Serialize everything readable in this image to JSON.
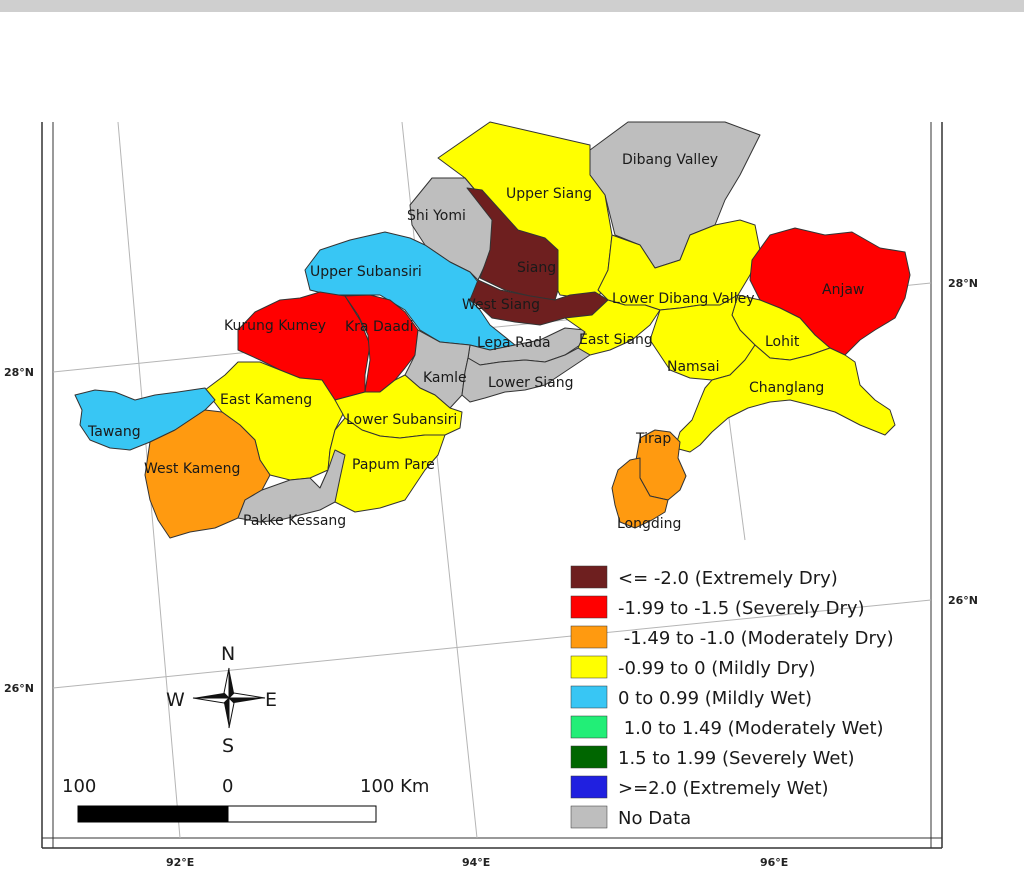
{
  "map": {
    "districts": [
      {
        "name": "Dibang Valley",
        "color": "#bebebe"
      },
      {
        "name": "Upper Siang",
        "color": "#ffff00"
      },
      {
        "name": "Shi Yomi",
        "color": "#bebebe"
      },
      {
        "name": "Siang",
        "color": "#6e1f1f"
      },
      {
        "name": "Upper Subansiri",
        "color": "#38c6f4"
      },
      {
        "name": "West Siang",
        "color": "#6e1f1f"
      },
      {
        "name": "Lower Dibang Valley",
        "color": "#ffff00"
      },
      {
        "name": "Anjaw",
        "color": "#ff0000"
      },
      {
        "name": "Kurung Kumey",
        "color": "#ff0000"
      },
      {
        "name": "Kra Daadi",
        "color": "#ff0000"
      },
      {
        "name": "Lepa Rada",
        "color": "#bebebe"
      },
      {
        "name": "East Siang",
        "color": "#ffff00"
      },
      {
        "name": "Lohit",
        "color": "#ffff00"
      },
      {
        "name": "Namsai",
        "color": "#ffff00"
      },
      {
        "name": "Kamle",
        "color": "#bebebe"
      },
      {
        "name": "Lower Siang",
        "color": "#bebebe"
      },
      {
        "name": "Changlang",
        "color": "#ffff00"
      },
      {
        "name": "East Kameng",
        "color": "#ffff00"
      },
      {
        "name": "Tawang",
        "color": "#38c6f4"
      },
      {
        "name": "Lower Subansiri",
        "color": "#ffff00"
      },
      {
        "name": "Tirap",
        "color": "#ff9a10"
      },
      {
        "name": "West Kameng",
        "color": "#ff9a10"
      },
      {
        "name": "Papum Pare",
        "color": "#ffff00"
      },
      {
        "name": "Longding",
        "color": "#ff9a10"
      },
      {
        "name": "Pakke Kessang",
        "color": "#bebebe"
      }
    ],
    "latitude_labels_left": [
      "28°N",
      "26°N"
    ],
    "latitude_labels_right": [
      "28°N",
      "26°N"
    ],
    "longitude_labels": [
      "92°E",
      "94°E",
      "96°E"
    ]
  },
  "legend": {
    "items": [
      {
        "label": "<= -2.0 (Extremely Dry)",
        "color": "#6e1f1f"
      },
      {
        "label": "-1.99 to -1.5 (Severely Dry)",
        "color": "#ff0000"
      },
      {
        "label": " -1.49 to -1.0 (Moderately Dry)",
        "color": "#ff9a10"
      },
      {
        "label": "-0.99 to 0 (Mildly Dry)",
        "color": "#ffff00"
      },
      {
        "label": "0 to 0.99 (Mildly Wet)",
        "color": "#38c6f4"
      },
      {
        "label": " 1.0 to 1.49 (Moderately Wet)",
        "color": "#22ee77"
      },
      {
        "label": "1.5 to 1.99 (Severely Wet)",
        "color": "#006600"
      },
      {
        "label": ">=2.0 (Extremely Wet)",
        "color": "#2020e0"
      },
      {
        "label": "No Data",
        "color": "#bebebe"
      }
    ]
  },
  "compass": {
    "n": "N",
    "s": "S",
    "e": "E",
    "w": "W"
  },
  "scalebar": {
    "left": "100",
    "middle": "0",
    "right": "100 Km"
  }
}
